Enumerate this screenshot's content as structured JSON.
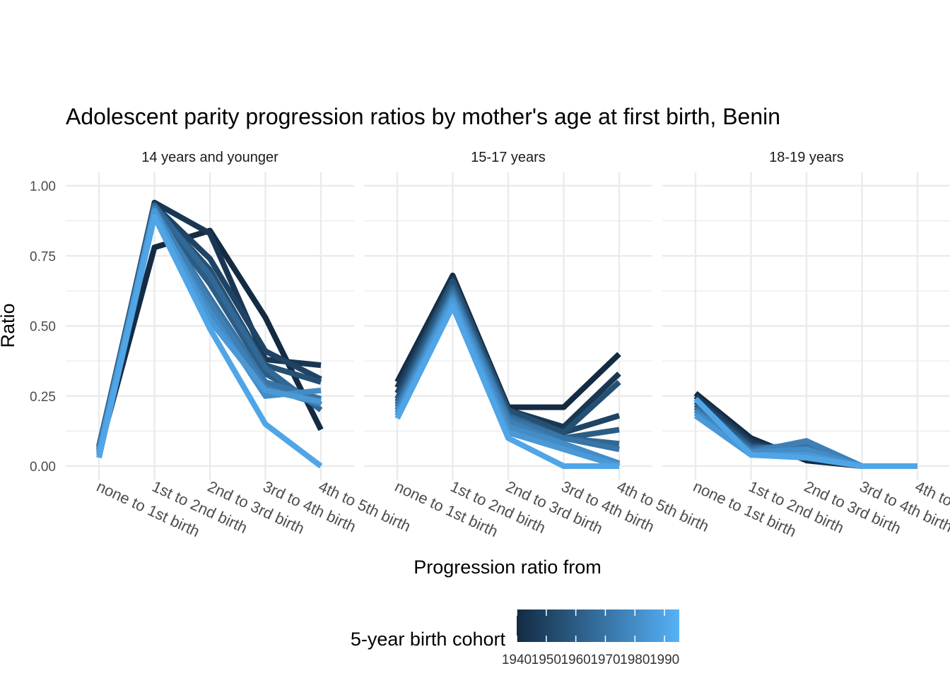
{
  "chart_data": {
    "type": "line",
    "title": "Adolescent parity progression ratios by mother's age at first birth,  Benin",
    "xlabel": "Progression ratio from",
    "ylabel": "Ratio",
    "ylim": [
      0,
      1.0
    ],
    "yticks": [
      "0.00",
      "0.25",
      "0.50",
      "0.75",
      "1.00"
    ],
    "categories": [
      "none to 1st birth",
      "1st to 2nd birth",
      "2nd to 3rd birth",
      "3rd to 4th birth",
      "4th to 5th birth"
    ],
    "grid": true,
    "legend": {
      "title": "5-year birth cohort",
      "position": "bottom",
      "ticks": [
        "1940",
        "1950",
        "1960",
        "1970",
        "1980",
        "1990"
      ],
      "range": [
        1940,
        1995
      ],
      "low_color": "#132B43",
      "high_color": "#56B1F7"
    },
    "panels": [
      {
        "name": "14 years and younger",
        "series": [
          {
            "cohort": 1940,
            "values": [
              0.05,
              0.78,
              0.84,
              0.53,
              0.13
            ]
          },
          {
            "cohort": 1945,
            "values": [
              0.06,
              0.94,
              0.83,
              0.38,
              0.36
            ]
          },
          {
            "cohort": 1950,
            "values": [
              0.07,
              0.93,
              0.74,
              0.41,
              0.31
            ]
          },
          {
            "cohort": 1955,
            "values": [
              0.06,
              0.92,
              0.7,
              0.36,
              0.3
            ]
          },
          {
            "cohort": 1960,
            "values": [
              0.07,
              0.91,
              0.65,
              0.33,
              0.22
            ]
          },
          {
            "cohort": 1965,
            "values": [
              0.05,
              0.93,
              0.68,
              0.35,
              0.2
            ]
          },
          {
            "cohort": 1970,
            "values": [
              0.06,
              0.91,
              0.6,
              0.3,
              0.24
            ]
          },
          {
            "cohort": 1975,
            "values": [
              0.05,
              0.92,
              0.58,
              0.28,
              0.22
            ]
          },
          {
            "cohort": 1980,
            "values": [
              0.04,
              0.9,
              0.55,
              0.25,
              0.27
            ]
          },
          {
            "cohort": 1985,
            "values": [
              0.05,
              0.91,
              0.52,
              0.27,
              0.23
            ]
          },
          {
            "cohort": 1990,
            "values": [
              0.03,
              0.89,
              0.49,
              0.15,
              0.0
            ]
          }
        ]
      },
      {
        "name": "15-17 years",
        "series": [
          {
            "cohort": 1940,
            "values": [
              0.3,
              0.68,
              0.21,
              0.21,
              0.4
            ]
          },
          {
            "cohort": 1945,
            "values": [
              0.28,
              0.67,
              0.2,
              0.14,
              0.33
            ]
          },
          {
            "cohort": 1950,
            "values": [
              0.26,
              0.66,
              0.19,
              0.12,
              0.18
            ]
          },
          {
            "cohort": 1955,
            "values": [
              0.24,
              0.66,
              0.2,
              0.12,
              0.3
            ]
          },
          {
            "cohort": 1960,
            "values": [
              0.23,
              0.64,
              0.18,
              0.1,
              0.13
            ]
          },
          {
            "cohort": 1965,
            "values": [
              0.22,
              0.63,
              0.18,
              0.1,
              0.08
            ]
          },
          {
            "cohort": 1970,
            "values": [
              0.21,
              0.62,
              0.17,
              0.1,
              0.06
            ]
          },
          {
            "cohort": 1975,
            "values": [
              0.2,
              0.61,
              0.16,
              0.08,
              0.0
            ]
          },
          {
            "cohort": 1980,
            "values": [
              0.19,
              0.6,
              0.14,
              0.08,
              0.01
            ]
          },
          {
            "cohort": 1985,
            "values": [
              0.18,
              0.59,
              0.12,
              0.06,
              0.0
            ]
          },
          {
            "cohort": 1990,
            "values": [
              0.17,
              0.57,
              0.1,
              0.0,
              0.0
            ]
          }
        ]
      },
      {
        "name": "18-19 years",
        "series": [
          {
            "cohort": 1940,
            "values": [
              0.26,
              0.1,
              0.02,
              0.0,
              0.0
            ]
          },
          {
            "cohort": 1945,
            "values": [
              0.25,
              0.09,
              0.03,
              0.0,
              0.0
            ]
          },
          {
            "cohort": 1950,
            "values": [
              0.24,
              0.08,
              0.04,
              0.0,
              0.0
            ]
          },
          {
            "cohort": 1955,
            "values": [
              0.23,
              0.07,
              0.05,
              0.0,
              0.0
            ]
          },
          {
            "cohort": 1960,
            "values": [
              0.22,
              0.07,
              0.06,
              0.0,
              0.0
            ]
          },
          {
            "cohort": 1965,
            "values": [
              0.21,
              0.06,
              0.07,
              0.0,
              0.0
            ]
          },
          {
            "cohort": 1970,
            "values": [
              0.2,
              0.06,
              0.08,
              0.0,
              0.0
            ]
          },
          {
            "cohort": 1975,
            "values": [
              0.2,
              0.05,
              0.09,
              0.0,
              0.0
            ]
          },
          {
            "cohort": 1980,
            "values": [
              0.19,
              0.05,
              0.06,
              0.0,
              0.0
            ]
          },
          {
            "cohort": 1985,
            "values": [
              0.18,
              0.04,
              0.04,
              0.0,
              0.0
            ]
          },
          {
            "cohort": 1990,
            "values": [
              0.24,
              0.04,
              0.03,
              0.0,
              0.0
            ]
          }
        ]
      }
    ]
  }
}
